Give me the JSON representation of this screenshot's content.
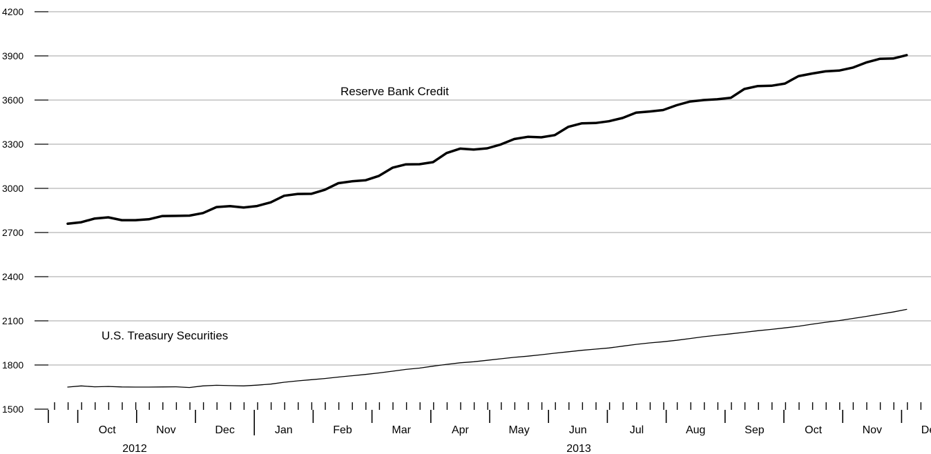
{
  "chart_data": {
    "type": "line",
    "title": "",
    "xlabel": "",
    "ylabel": "",
    "ylim": [
      1500,
      4200
    ],
    "yticks": [
      1500,
      1800,
      2100,
      2400,
      2700,
      3000,
      3300,
      3600,
      3900,
      4200
    ],
    "grid": "horizontal",
    "month_labels": [
      "Oct",
      "Nov",
      "Dec",
      "Jan",
      "Feb",
      "Mar",
      "Apr",
      "May",
      "Jun",
      "Jul",
      "Aug",
      "Sep",
      "Oct",
      "Nov",
      "Dec"
    ],
    "year_labels": [
      "2012",
      "2013"
    ],
    "x": [
      "2012-09-26",
      "2012-10-03",
      "2012-10-10",
      "2012-10-17",
      "2012-10-24",
      "2012-10-31",
      "2012-11-07",
      "2012-11-14",
      "2012-11-21",
      "2012-11-28",
      "2012-12-05",
      "2012-12-12",
      "2012-12-19",
      "2012-12-26",
      "2013-01-02",
      "2013-01-09",
      "2013-01-16",
      "2013-01-23",
      "2013-01-30",
      "2013-02-06",
      "2013-02-13",
      "2013-02-20",
      "2013-02-27",
      "2013-03-06",
      "2013-03-13",
      "2013-03-20",
      "2013-03-27",
      "2013-04-03",
      "2013-04-10",
      "2013-04-17",
      "2013-04-24",
      "2013-05-01",
      "2013-05-08",
      "2013-05-15",
      "2013-05-22",
      "2013-05-29",
      "2013-06-05",
      "2013-06-12",
      "2013-06-19",
      "2013-06-26",
      "2013-07-03",
      "2013-07-10",
      "2013-07-17",
      "2013-07-24",
      "2013-07-31",
      "2013-08-07",
      "2013-08-14",
      "2013-08-21",
      "2013-08-28",
      "2013-09-04",
      "2013-09-11",
      "2013-09-18",
      "2013-09-25",
      "2013-10-02",
      "2013-10-09",
      "2013-10-16",
      "2013-10-23",
      "2013-10-30",
      "2013-11-06",
      "2013-11-13",
      "2013-11-20",
      "2013-11-27",
      "2013-12-04"
    ],
    "series": [
      {
        "name": "Reserve Bank Credit",
        "values": [
          2760,
          2770,
          2795,
          2803,
          2784,
          2784,
          2790,
          2812,
          2813,
          2815,
          2832,
          2873,
          2879,
          2870,
          2880,
          2905,
          2950,
          2962,
          2963,
          2990,
          3035,
          3048,
          3055,
          3085,
          3140,
          3163,
          3164,
          3178,
          3240,
          3270,
          3264,
          3272,
          3298,
          3335,
          3350,
          3347,
          3362,
          3418,
          3442,
          3444,
          3456,
          3478,
          3514,
          3522,
          3532,
          3565,
          3590,
          3600,
          3605,
          3615,
          3675,
          3695,
          3697,
          3712,
          3762,
          3780,
          3795,
          3800,
          3820,
          3855,
          3880,
          3882,
          3905
        ]
      },
      {
        "name": "U.S. Treasury Securities",
        "values": [
          1650,
          1658,
          1652,
          1654,
          1651,
          1650,
          1650,
          1651,
          1652,
          1647,
          1658,
          1662,
          1660,
          1658,
          1663,
          1670,
          1683,
          1692,
          1700,
          1708,
          1718,
          1727,
          1736,
          1746,
          1758,
          1770,
          1779,
          1792,
          1804,
          1815,
          1822,
          1832,
          1842,
          1852,
          1860,
          1870,
          1880,
          1890,
          1900,
          1908,
          1916,
          1928,
          1940,
          1950,
          1958,
          1968,
          1980,
          1992,
          2002,
          2012,
          2022,
          2033,
          2042,
          2052,
          2063,
          2077,
          2090,
          2102,
          2116,
          2130,
          2145,
          2160,
          2178
        ]
      }
    ],
    "line_widths": [
      3.5,
      1.3
    ],
    "color": "#000000",
    "grid_color": "#b3b3b3"
  }
}
